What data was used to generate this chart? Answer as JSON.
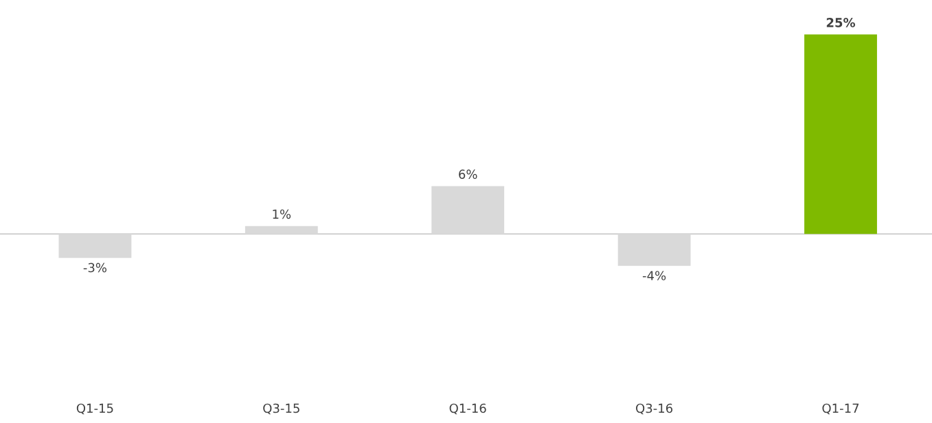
{
  "chart_data": {
    "type": "bar",
    "categories": [
      "Q1-15",
      "Q3-15",
      "Q1-16",
      "Q3-16",
      "Q1-17"
    ],
    "values": [
      -3,
      1,
      6,
      -4,
      25
    ],
    "colors": [
      "#d9d9d9",
      "#d9d9d9",
      "#d9d9d9",
      "#d9d9d9",
      "#7fba00"
    ],
    "value_labels": [
      "-3%",
      "1%",
      "6%",
      "-4%",
      "25%"
    ],
    "grid": false,
    "legend": false
  }
}
